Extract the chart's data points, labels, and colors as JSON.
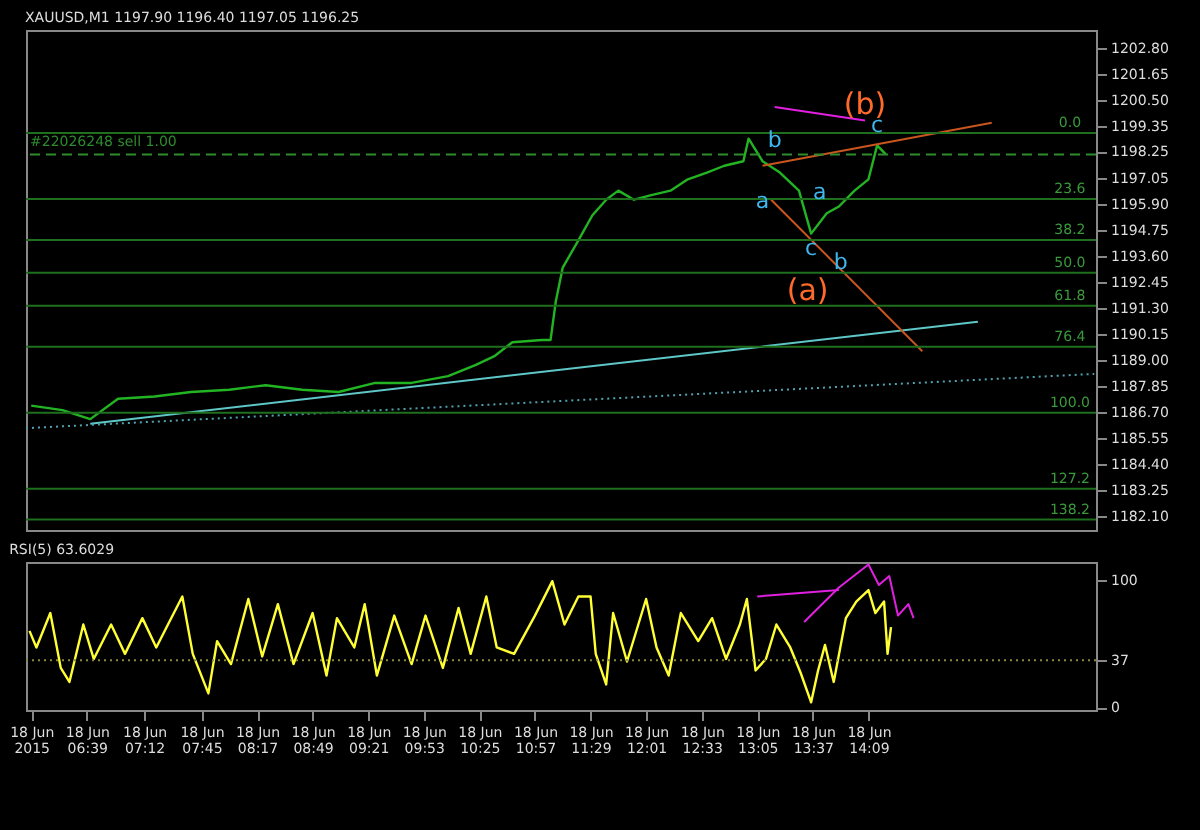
{
  "chart_data": [
    {
      "type": "line",
      "title": "XAUUSD,M1  1197.90 1196.40 1197.05 1196.25",
      "xlim": [
        "2015-06-18T06:04",
        "2015-06-18T16:20"
      ],
      "ylim": [
        1181.5,
        1203.6
      ],
      "yticks": [
        {
          "value": 1202.8,
          "label": "1202.80"
        },
        {
          "value": 1201.65,
          "label": "1201.65"
        },
        {
          "value": 1200.5,
          "label": "1200.50"
        },
        {
          "value": 1199.35,
          "label": "1199.35"
        },
        {
          "value": 1198.25,
          "label": "1198.25"
        },
        {
          "value": 1197.05,
          "label": "1197.05"
        },
        {
          "value": 1195.9,
          "label": "1195.90"
        },
        {
          "value": 1194.75,
          "label": "1194.75"
        },
        {
          "value": 1193.6,
          "label": "1193.60"
        },
        {
          "value": 1192.45,
          "label": "1192.45"
        },
        {
          "value": 1191.3,
          "label": "1191.30"
        },
        {
          "value": 1190.15,
          "label": "1190.15"
        },
        {
          "value": 1189,
          "label": "1189.00"
        },
        {
          "value": 1187.85,
          "label": "1187.85"
        },
        {
          "value": 1186.7,
          "label": "1186.70"
        },
        {
          "value": 1185.55,
          "label": "1185.55"
        },
        {
          "value": 1184.4,
          "label": "1184.40"
        },
        {
          "value": 1183.25,
          "label": "1183.25"
        },
        {
          "value": 1182.1,
          "label": "1182.10"
        }
      ],
      "tick_labels": "y",
      "grid": false,
      "series": [
        {
          "color": "#22b422",
          "x": [
            "2015-06-18T06:07",
            "2015-06-18T06:25",
            "2015-06-18T06:41",
            "2015-06-18T06:57",
            "2015-06-18T07:18",
            "2015-06-18T07:39",
            "2015-06-18T08:01",
            "2015-06-18T08:22",
            "2015-06-18T08:43",
            "2015-06-18T09:04",
            "2015-06-18T09:25",
            "2015-06-18T09:46",
            "2015-06-18T10:07",
            "2015-06-18T10:23",
            "2015-06-18T10:34",
            "2015-06-18T10:44",
            "2015-06-18T11:01",
            "2015-06-18T11:06",
            "2015-06-18T11:09",
            "2015-06-18T11:13",
            "2015-06-18T11:22",
            "2015-06-18T11:30",
            "2015-06-18T11:38",
            "2015-06-18T11:45",
            "2015-06-18T11:54",
            "2015-06-18T12:04",
            "2015-06-18T12:15",
            "2015-06-18T12:25",
            "2015-06-18T12:36",
            "2015-06-18T12:46",
            "2015-06-18T12:57",
            "2015-06-18T13:00",
            "2015-06-18T13:08",
            "2015-06-18T13:18",
            "2015-06-18T13:29",
            "2015-06-18T13:36",
            "2015-06-18T13:45",
            "2015-06-18T13:52",
            "2015-06-18T14:01",
            "2015-06-18T14:09",
            "2015-06-18T14:14",
            "2015-06-18T14:19"
          ],
          "values": [
            1187.0,
            1186.8,
            1186.4,
            1187.3,
            1187.4,
            1187.6,
            1187.7,
            1187.9,
            1187.7,
            1187.6,
            1188.0,
            1188.0,
            1188.3,
            1188.8,
            1189.2,
            1189.8,
            1189.9,
            1189.9,
            1191.6,
            1193.1,
            1194.3,
            1195.4,
            1196.1,
            1196.5,
            1196.1,
            1196.3,
            1196.5,
            1197.0,
            1197.3,
            1197.6,
            1197.8,
            1198.8,
            1197.8,
            1197.3,
            1196.5,
            1194.6,
            1195.5,
            1195.8,
            1196.5,
            1197.0,
            1198.5,
            1198.1
          ]
        },
        {
          "color": "#5fc7c7",
          "x": [
            "2015-06-18T06:41",
            "2015-06-18T15:12"
          ],
          "values": [
            1186.2,
            1190.7
          ]
        },
        {
          "color": "#4fa3b0",
          "line_style": "dotted",
          "x": [
            "2015-06-18T06:04",
            "2015-06-18T16:19"
          ],
          "values": [
            1186.0,
            1188.4
          ]
        },
        {
          "color": "#c8561e",
          "x": [
            "2015-06-18T13:13",
            "2015-06-18T14:40"
          ],
          "values": [
            1196.1,
            1189.4
          ]
        },
        {
          "color": "#c8561e",
          "x": [
            "2015-06-18T13:08",
            "2015-06-18T15:20"
          ],
          "values": [
            1197.6,
            1199.5
          ]
        },
        {
          "color": "#e020e0",
          "x": [
            "2015-06-18T13:15",
            "2015-06-18T14:07"
          ],
          "values": [
            1200.2,
            1199.6
          ]
        }
      ],
      "ref_lines": [
        {
          "axis": "y",
          "value": 1199.05,
          "label": null,
          "color": "#1f6f1f"
        },
        {
          "axis": "y",
          "value": 1196.13,
          "label": null,
          "color": "#1f6f1f"
        },
        {
          "axis": "y",
          "value": 1194.32,
          "label": null,
          "color": "#1f6f1f"
        },
        {
          "axis": "y",
          "value": 1192.87,
          "label": null,
          "color": "#1f6f1f"
        },
        {
          "axis": "y",
          "value": 1191.41,
          "label": null,
          "color": "#1f6f1f"
        },
        {
          "axis": "y",
          "value": 1189.6,
          "label": null,
          "color": "#1f6f1f"
        },
        {
          "axis": "y",
          "value": 1186.68,
          "label": null,
          "color": "#1f6f1f"
        },
        {
          "axis": "y",
          "value": 1183.32,
          "label": null,
          "color": "#1f6f1f"
        },
        {
          "axis": "y",
          "value": 1181.96,
          "label": null,
          "color": "#1f6f1f"
        },
        {
          "axis": "y",
          "value": 1198.1,
          "label": "#22026248 sell 1.00",
          "color": "#2e8b2e",
          "line_style": "dashed"
        }
      ],
      "annotations": [
        {
          "text": "0.0",
          "x": "2015-06-18T16:05",
          "y": 1199.05
        },
        {
          "text": "23.6",
          "x": "2015-06-18T16:05",
          "y": 1196.13
        },
        {
          "text": "38.2",
          "x": "2015-06-18T16:05",
          "y": 1194.32
        },
        {
          "text": "50.0",
          "x": "2015-06-18T16:05",
          "y": 1192.87
        },
        {
          "text": "61.8",
          "x": "2015-06-18T16:05",
          "y": 1191.41
        },
        {
          "text": "76.4",
          "x": "2015-06-18T16:05",
          "y": 1189.6
        },
        {
          "text": "100.0",
          "x": "2015-06-18T16:05",
          "y": 1186.68
        },
        {
          "text": "127.2",
          "x": "2015-06-18T16:05",
          "y": 1183.32
        },
        {
          "text": "138.2",
          "x": "2015-06-18T16:05",
          "y": 1181.96
        },
        {
          "text": "(b)",
          "x": "2015-06-18T14:07",
          "y": 1199.6
        },
        {
          "text": "c",
          "x": "2015-06-18T14:14",
          "y": 1199.35
        },
        {
          "text": "b",
          "x": "2015-06-18T13:15",
          "y": 1198.7
        },
        {
          "text": "a",
          "x": "2015-06-18T13:08",
          "y": 1196.0
        },
        {
          "text": "a",
          "x": "2015-06-18T13:41",
          "y": 1196.4
        },
        {
          "text": "c",
          "x": "2015-06-18T13:36",
          "y": 1193.9
        },
        {
          "text": "b",
          "x": "2015-06-18T13:53",
          "y": 1193.3
        },
        {
          "text": "(a)",
          "x": "2015-06-18T13:34",
          "y": 1191.41
        }
      ]
    },
    {
      "type": "line",
      "title": "RSI(5) 63.6029",
      "xlim": [
        "2015-06-18T06:04",
        "2015-06-18T16:20"
      ],
      "ylim": [
        -2,
        114
      ],
      "xticks": [
        {
          "value": "2015-06-18T06:07",
          "label": "18 Jun 2015"
        },
        {
          "value": "2015-06-18T06:39",
          "label": "18 Jun 06:39"
        },
        {
          "value": "2015-06-18T07:12",
          "label": "18 Jun 07:12"
        },
        {
          "value": "2015-06-18T07:45",
          "label": "18 Jun 07:45"
        },
        {
          "value": "2015-06-18T08:17",
          "label": "18 Jun 08:17"
        },
        {
          "value": "2015-06-18T08:49",
          "label": "18 Jun 08:49"
        },
        {
          "value": "2015-06-18T09:21",
          "label": "18 Jun 09:21"
        },
        {
          "value": "2015-06-18T09:53",
          "label": "18 Jun 09:53"
        },
        {
          "value": "2015-06-18T10:25",
          "label": "18 Jun 10:25"
        },
        {
          "value": "2015-06-18T10:57",
          "label": "18 Jun 10:57"
        },
        {
          "value": "2015-06-18T11:29",
          "label": "18 Jun 11:29"
        },
        {
          "value": "2015-06-18T12:01",
          "label": "18 Jun 12:01"
        },
        {
          "value": "2015-06-18T12:33",
          "label": "18 Jun 12:33"
        },
        {
          "value": "2015-06-18T13:05",
          "label": "18 Jun 13:05"
        },
        {
          "value": "2015-06-18T13:37",
          "label": "18 Jun 13:37"
        },
        {
          "value": "2015-06-18T14:09",
          "label": "18 Jun 14:09"
        }
      ],
      "yticks": [
        0,
        37,
        100
      ],
      "grid": false,
      "series": [
        {
          "color": "#ffff33",
          "x": [
            "2015-06-18T06:06",
            "2015-06-18T06:10",
            "2015-06-18T06:18",
            "2015-06-18T06:24",
            "2015-06-18T06:29",
            "2015-06-18T06:37",
            "2015-06-18T06:43",
            "2015-06-18T06:53",
            "2015-06-18T07:01",
            "2015-06-18T07:11",
            "2015-06-18T07:19",
            "2015-06-18T07:25",
            "2015-06-18T07:34",
            "2015-06-18T07:40",
            "2015-06-18T07:49",
            "2015-06-18T07:54",
            "2015-06-18T08:02",
            "2015-06-18T08:12",
            "2015-06-18T08:20",
            "2015-06-18T08:29",
            "2015-06-18T08:38",
            "2015-06-18T08:49",
            "2015-06-18T08:57",
            "2015-06-18T09:03",
            "2015-06-18T09:13",
            "2015-06-18T09:19",
            "2015-06-18T09:26",
            "2015-06-18T09:36",
            "2015-06-18T09:46",
            "2015-06-18T09:54",
            "2015-06-18T10:04",
            "2015-06-18T10:13",
            "2015-06-18T10:20",
            "2015-06-18T10:29",
            "2015-06-18T10:35",
            "2015-06-18T10:45",
            "2015-06-18T10:57",
            "2015-06-18T11:07",
            "2015-06-18T11:14",
            "2015-06-18T11:22",
            "2015-06-18T11:29",
            "2015-06-18T11:32",
            "2015-06-18T11:38",
            "2015-06-18T11:42",
            "2015-06-18T11:50",
            "2015-06-18T12:01",
            "2015-06-18T12:07",
            "2015-06-18T12:14",
            "2015-06-18T12:21",
            "2015-06-18T12:31",
            "2015-06-18T12:39",
            "2015-06-18T12:47",
            "2015-06-18T12:55",
            "2015-06-18T12:59",
            "2015-06-18T13:04",
            "2015-06-18T13:10",
            "2015-06-18T13:16",
            "2015-06-18T13:24",
            "2015-06-18T13:30",
            "2015-06-18T13:36",
            "2015-06-18T13:40",
            "2015-06-18T13:44",
            "2015-06-18T13:49",
            "2015-06-18T13:56",
            "2015-06-18T14:02",
            "2015-06-18T14:09",
            "2015-06-18T14:13",
            "2015-06-18T14:18",
            "2015-06-18T14:20",
            "2015-06-18T14:22"
          ],
          "values": [
            60,
            47,
            74,
            31,
            20,
            65,
            38,
            65,
            42,
            70,
            47,
            63,
            87,
            42,
            11,
            52,
            34,
            85,
            40,
            81,
            34,
            74,
            25,
            70,
            47,
            81,
            25,
            72,
            34,
            72,
            31,
            78,
            42,
            87,
            47,
            42,
            72,
            99,
            65,
            87,
            87,
            42,
            18,
            74,
            36,
            85,
            47,
            25,
            74,
            52,
            70,
            38,
            65,
            85,
            29,
            38,
            65,
            47,
            27,
            4,
            29,
            49,
            20,
            70,
            83,
            92,
            74,
            83,
            42,
            63
          ]
        },
        {
          "color": "#e020e0",
          "x": [
            "2015-06-18T13:32",
            "2015-06-18T13:52",
            "2015-06-18T14:09",
            "2015-06-18T14:15",
            "2015-06-18T14:21",
            "2015-06-18T14:26",
            "2015-06-18T14:32",
            "2015-06-18T14:35"
          ],
          "values": [
            67,
            94,
            112,
            96,
            103,
            72,
            81,
            70
          ]
        },
        {
          "color": "#e020e0",
          "x": [
            "2015-06-18T13:05",
            "2015-06-18T13:52"
          ],
          "values": [
            87,
            92
          ]
        }
      ],
      "ref_lines": [
        {
          "axis": "y",
          "value": 37,
          "label": null,
          "color": "#8a8a3a",
          "line_style": "dotted"
        }
      ]
    }
  ]
}
